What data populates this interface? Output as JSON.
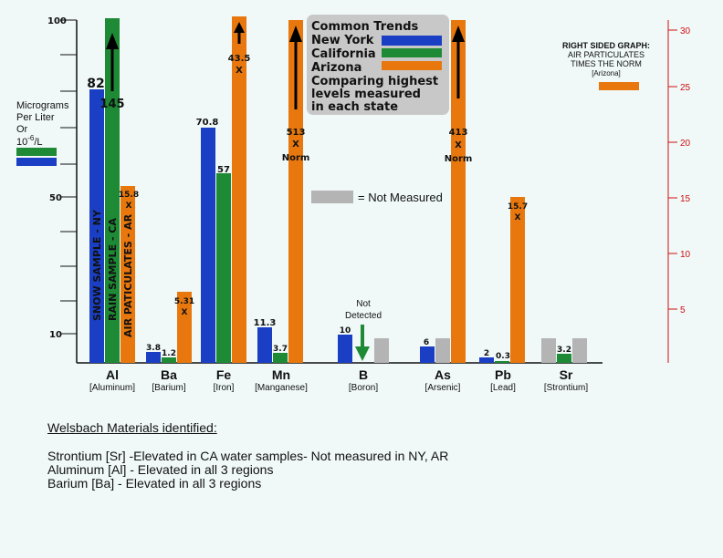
{
  "chart_data": {
    "type": "bar",
    "left_axis": {
      "label_lines": [
        "Micrograms",
        "Per Liter",
        "Or"
      ],
      "unit_text": "10",
      "unit_sup": "-6",
      "unit_tail": "/L",
      "ticks": [
        "100",
        "50",
        "10"
      ]
    },
    "right_axis": {
      "label_lines": [
        "RIGHT SIDED GRAPH:",
        "AIR PARTICULATES",
        "TIMES THE NORM",
        "[Arizona]"
      ],
      "ticks": [
        "30",
        "25",
        "20",
        "15",
        "10",
        "5"
      ],
      "range": [
        0,
        30
      ]
    },
    "legend": {
      "title": "Common Trends",
      "items": [
        {
          "name": "New York",
          "color": "#1a3fc4"
        },
        {
          "name": "California",
          "color": "#1e8a35"
        },
        {
          "name": "Arizona",
          "color": "#e8780e"
        }
      ],
      "note_lines": [
        "Comparing highest",
        "levels measured",
        "in each state"
      ],
      "not_measured": "= Not Measured"
    },
    "colors": {
      "ny": "#1a3fc4",
      "ca": "#1e8a35",
      "az": "#e8780e",
      "nm": "#b4b4b4"
    },
    "categories": [
      {
        "symbol": "Al",
        "name": "[Aluminum]",
        "ny": 82,
        "ca": 145,
        "az_times_norm": 15.8
      },
      {
        "symbol": "Ba",
        "name": "[Barium]",
        "ny": 3.8,
        "ca": 1.2,
        "az_times_norm": 5.31
      },
      {
        "symbol": "Fe",
        "name": "[Iron]",
        "ny": 70.8,
        "ca": 57,
        "az_times_norm": 43.5
      },
      {
        "symbol": "Mn",
        "name": "[Manganese]",
        "ny": 11.3,
        "ca": 3.7,
        "az_times_norm": 513
      },
      {
        "symbol": "B",
        "name": "[Boron]",
        "ny": 10,
        "ca": "Not Detected",
        "az_times_norm": "Not Measured"
      },
      {
        "symbol": "As",
        "name": "[Arsenic]",
        "ny": 6,
        "ca": "Not Measured",
        "az_times_norm": 413
      },
      {
        "symbol": "Pb",
        "name": "[Lead]",
        "ny": 2,
        "ca": 0.3,
        "az_times_norm": 15.7
      },
      {
        "symbol": "Sr",
        "name": "[Strontium]",
        "ny": "Not Measured",
        "ca": 3.2,
        "az_times_norm": "Not Measured"
      }
    ],
    "bar_labels": {
      "al_ny": "82",
      "al_ca": "145",
      "al_az": "15.8",
      "al_az_x": "X",
      "ba_ny": "3.8",
      "ba_ca": "1.2",
      "ba_az": "5.31",
      "ba_az_x": "X",
      "fe_ny": "70.8",
      "fe_ca": "57",
      "fe_az": "43.5",
      "fe_az_x": "X",
      "mn_ny": "11.3",
      "mn_ca": "3.7",
      "mn_az": "513",
      "mn_az_x": "X",
      "mn_az_norm": "Norm",
      "b_ny": "10",
      "b_nd_1": "Not",
      "b_nd_2": "Detected",
      "as_ny": "6",
      "as_az": "413",
      "as_az_x": "X",
      "as_az_norm": "Norm",
      "pb_ny": "2",
      "pb_ca": "0.3",
      "pb_az": "15.7",
      "pb_az_x": "X",
      "sr_ca": "3.2"
    },
    "vertical_labels": [
      "SNOW SAMPLE - NY",
      "RAIN SAMPLE - CA",
      "AIR PATICULATES - AR"
    ]
  },
  "notes": {
    "heading": "Welsbach Materials identified:",
    "lines": [
      "Strontium [Sr] -Elevated in CA water samples- Not measured in NY, AR",
      "Aluminum [Al] - Elevated in all 3 regions",
      "Barium [Ba] - Elevated in all 3 regions"
    ]
  }
}
